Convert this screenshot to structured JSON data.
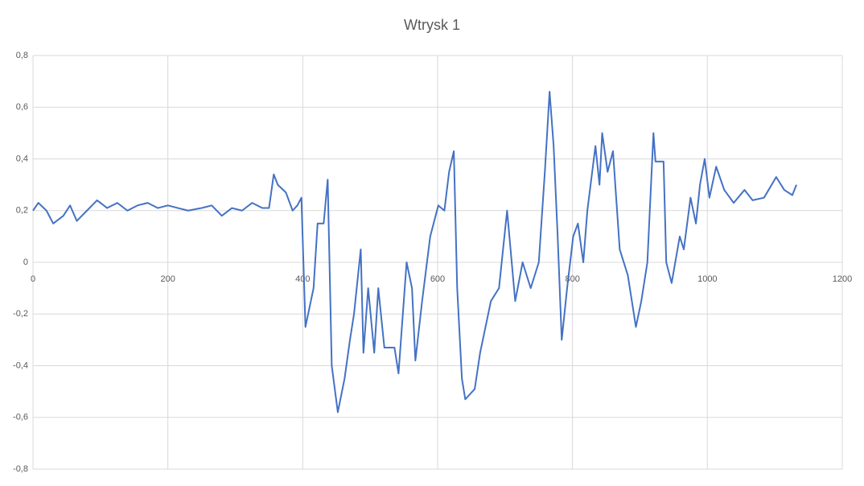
{
  "chart_data": {
    "type": "line",
    "title": "Wtrysk 1",
    "x": [
      0,
      8,
      20,
      30,
      45,
      55,
      65,
      80,
      95,
      110,
      125,
      140,
      155,
      170,
      185,
      200,
      215,
      230,
      250,
      265,
      280,
      295,
      310,
      325,
      340,
      350,
      357,
      363,
      375,
      385,
      392,
      398,
      404,
      416,
      422,
      431,
      437,
      443,
      452,
      462,
      470,
      476,
      486,
      490,
      497,
      506,
      512,
      521,
      536,
      542,
      554,
      562,
      567,
      577,
      589,
      601,
      610,
      617,
      624,
      629,
      636,
      641,
      655,
      663,
      679,
      691,
      703,
      715,
      726,
      738,
      750,
      759,
      766,
      772,
      778,
      784,
      792,
      801,
      808,
      816,
      822,
      834,
      840,
      844,
      852,
      860,
      870,
      882,
      894,
      902,
      911,
      920,
      923,
      935,
      939,
      947,
      959,
      965,
      975,
      983,
      989,
      996,
      1003,
      1013,
      1025,
      1039,
      1055,
      1067,
      1084,
      1102,
      1114,
      1126,
      1132
    ],
    "series": [
      {
        "name": "Wtrysk 1",
        "color": "#4472c4",
        "values": [
          0.2,
          0.23,
          0.2,
          0.15,
          0.18,
          0.22,
          0.16,
          0.2,
          0.24,
          0.21,
          0.23,
          0.2,
          0.22,
          0.23,
          0.21,
          0.22,
          0.21,
          0.2,
          0.21,
          0.22,
          0.18,
          0.21,
          0.2,
          0.23,
          0.21,
          0.21,
          0.34,
          0.3,
          0.27,
          0.2,
          0.22,
          0.25,
          -0.25,
          -0.1,
          0.15,
          0.15,
          0.32,
          -0.4,
          -0.58,
          -0.45,
          -0.3,
          -0.2,
          0.05,
          -0.35,
          -0.1,
          -0.35,
          -0.1,
          -0.33,
          -0.33,
          -0.43,
          0.0,
          -0.1,
          -0.38,
          -0.15,
          0.1,
          0.22,
          0.2,
          0.35,
          0.43,
          -0.1,
          -0.45,
          -0.53,
          -0.49,
          -0.35,
          -0.15,
          -0.1,
          0.2,
          -0.15,
          0.0,
          -0.1,
          0.0,
          0.35,
          0.66,
          0.45,
          0.1,
          -0.3,
          -0.1,
          0.1,
          0.15,
          0.0,
          0.2,
          0.45,
          0.3,
          0.5,
          0.35,
          0.43,
          0.05,
          -0.05,
          -0.25,
          -0.15,
          0.0,
          0.5,
          0.39,
          0.39,
          0.0,
          -0.08,
          0.1,
          0.05,
          0.25,
          0.15,
          0.3,
          0.4,
          0.25,
          0.37,
          0.28,
          0.23,
          0.28,
          0.24,
          0.25,
          0.33,
          0.28,
          0.26,
          0.3
        ]
      }
    ],
    "xlim": [
      0,
      1200
    ],
    "xticks": [
      0,
      200,
      400,
      600,
      800,
      1000,
      1200
    ],
    "ylim": [
      -0.8,
      0.8
    ],
    "yticks": [
      {
        "value": -0.8,
        "label": "-0,8"
      },
      {
        "value": -0.6,
        "label": "-0,6"
      },
      {
        "value": -0.4,
        "label": "-0,4"
      },
      {
        "value": -0.2,
        "label": "-0,2"
      },
      0,
      {
        "value": 0.2,
        "label": "0,2"
      },
      {
        "value": 0.4,
        "label": "0,4"
      },
      {
        "value": 0.6,
        "label": "0,6"
      },
      {
        "value": 0.8,
        "label": "0,8"
      }
    ],
    "grid": true
  }
}
